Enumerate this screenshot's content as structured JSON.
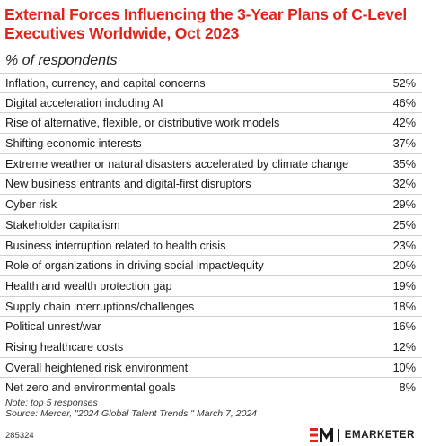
{
  "header": {
    "title": "External Forces Influencing the 3-Year Plans of C-Level Executives Worldwide, Oct 2023",
    "subtitle": "% of respondents"
  },
  "chart_data": {
    "type": "table",
    "title": "External Forces Influencing the 3-Year Plans of C-Level Executives Worldwide, Oct 2023",
    "subtitle": "% of respondents",
    "rows": [
      {
        "label": "Inflation, currency, and capital concerns",
        "value": "52%"
      },
      {
        "label": "Digital acceleration including AI",
        "value": "46%"
      },
      {
        "label": "Rise of alternative, flexible, or distributive work models",
        "value": "42%"
      },
      {
        "label": "Shifting economic interests",
        "value": "37%"
      },
      {
        "label": "Extreme weather or natural disasters accelerated by climate change",
        "value": "35%"
      },
      {
        "label": "New business entrants and digital-first disruptors",
        "value": "32%"
      },
      {
        "label": "Cyber risk",
        "value": "29%"
      },
      {
        "label": "Stakeholder capitalism",
        "value": "25%"
      },
      {
        "label": "Business interruption related to health crisis",
        "value": "23%"
      },
      {
        "label": "Role of organizations in driving social impact/equity",
        "value": "20%"
      },
      {
        "label": "Health and wealth protection gap",
        "value": "19%"
      },
      {
        "label": "Supply chain interruptions/challenges",
        "value": "18%"
      },
      {
        "label": "Political unrest/war",
        "value": "16%"
      },
      {
        "label": "Rising healthcare costs",
        "value": "12%"
      },
      {
        "label": "Overall heightened risk environment",
        "value": "10%"
      },
      {
        "label": "Net zero and environmental goals",
        "value": "8%"
      }
    ]
  },
  "footer": {
    "note": "Note: top 5 responses",
    "source": "Source: Mercer, \"2024 Global Talent Trends,\" March 7, 2024",
    "chart_id": "285324",
    "brand": "EMARKETER",
    "logo_icon": "em-logo-icon"
  },
  "colors": {
    "title": "#e2231a",
    "logo_red": "#e2231a",
    "divider": "#d0d0d0"
  }
}
